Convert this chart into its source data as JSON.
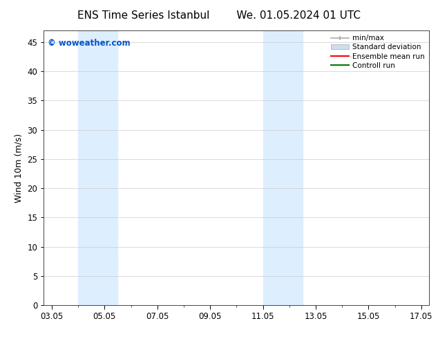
{
  "title_left": "ENS Time Series Istanbul",
  "title_right": "We. 01.05.2024 01 UTC",
  "ylabel": "Wind 10m (m/s)",
  "xtick_labels": [
    "03.05",
    "05.05",
    "07.05",
    "09.05",
    "11.05",
    "13.05",
    "15.05",
    "17.05"
  ],
  "x_major": [
    0,
    2,
    4,
    6,
    8,
    10,
    12,
    14
  ],
  "x_minor": [
    1,
    3,
    5,
    7,
    9,
    11,
    13
  ],
  "xlim": [
    -0.3,
    14.3
  ],
  "ylim": [
    0,
    47
  ],
  "yticks": [
    0,
    5,
    10,
    15,
    20,
    25,
    30,
    35,
    40,
    45
  ],
  "shaded_bands": [
    {
      "x_start": 1.0,
      "x_end": 2.5
    },
    {
      "x_start": 8.0,
      "x_end": 9.5
    }
  ],
  "shade_color": "#ddeeff",
  "background_color": "#ffffff",
  "watermark_text": "© woweather.com",
  "watermark_color": "#0055cc",
  "legend_entries": [
    {
      "label": "min/max",
      "color": "#aaaaaa",
      "lw": 1.2,
      "type": "line_with_caps"
    },
    {
      "label": "Standard deviation",
      "color": "#ccddf0",
      "lw": 5,
      "type": "patch"
    },
    {
      "label": "Ensemble mean run",
      "color": "#ff0000",
      "lw": 1.5,
      "type": "line"
    },
    {
      "label": "Controll run",
      "color": "#007700",
      "lw": 1.5,
      "type": "line"
    }
  ],
  "title_fontsize": 11,
  "tick_fontsize": 8.5,
  "ylabel_fontsize": 9,
  "legend_fontsize": 7.5,
  "watermark_fontsize": 8.5
}
